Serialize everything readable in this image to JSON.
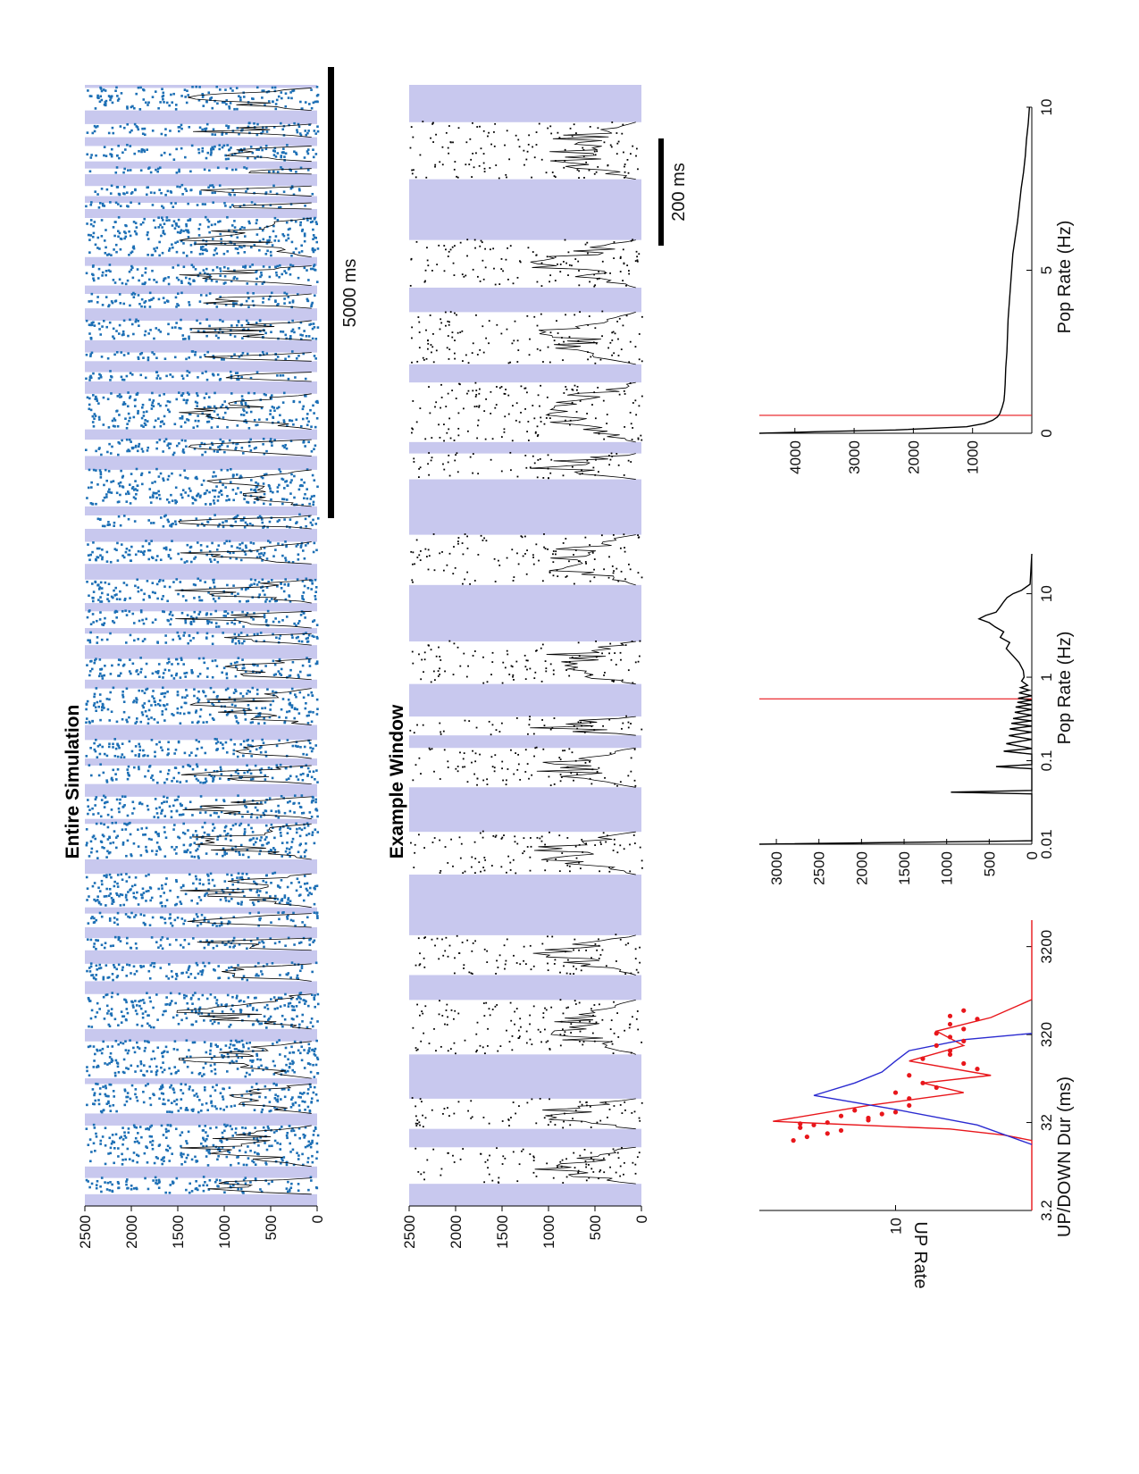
{
  "figure": {
    "orientation": "landscape page rotated 90 degrees counter-clockwise"
  },
  "colors": {
    "up_state_shade": "#c8c8ee",
    "raster_full": "#1c6fb5",
    "raster_window": "#000000",
    "red": "#e8161b",
    "blue": "#2a2ad0",
    "trace": "#000000"
  },
  "chart_data": [
    {
      "id": "entire",
      "type": "scatter",
      "title": "Entire Simulation",
      "xlabel": "",
      "ylabel": "",
      "ylim": [
        0,
        2500
      ],
      "yticks": [
        "0",
        "500",
        "1000",
        "1500",
        "2000",
        "2500"
      ],
      "scalebar": "5000 ms",
      "description_series": [
        "raster spikes",
        "population rate trace",
        "UP-state shading"
      ]
    },
    {
      "id": "window",
      "type": "scatter",
      "title": "Example Window",
      "xlabel": "",
      "ylabel": "",
      "ylim": [
        0,
        2500
      ],
      "yticks": [
        "0",
        "500",
        "1000",
        "1500",
        "2000",
        "2500"
      ],
      "scalebar": "200 ms"
    },
    {
      "id": "updur",
      "type": "line",
      "title": "",
      "xlabel": "UP/DOWN Dur (ms)",
      "ylabel": "UP Rate",
      "xscale": "log",
      "xlim": [
        3.2,
        6400
      ],
      "xticks": [
        "3.2",
        "32",
        "320",
        "3200"
      ],
      "yticks": [
        "10"
      ],
      "ylim": [
        0,
        20
      ],
      "series": [
        {
          "color": "red",
          "x": [
            3.2,
            20,
            23,
            27,
            33,
            50,
            70,
            90,
            110,
            160,
            240,
            350,
            500,
            800,
            6400
          ],
          "y": [
            0,
            0,
            2,
            6,
            19,
            12,
            5,
            8,
            3,
            9,
            5,
            7,
            3,
            0,
            0
          ]
        },
        {
          "color": "blue",
          "x": [
            18,
            30,
            45,
            65,
            90,
            120,
            160,
            210,
            280,
            330
          ],
          "y": [
            0,
            4,
            10,
            16,
            13,
            11,
            10,
            9,
            5,
            0
          ]
        }
      ],
      "points": [
        [
          20,
          17.5
        ],
        [
          22,
          16.5
        ],
        [
          24,
          15
        ],
        [
          26,
          14
        ],
        [
          28,
          17
        ],
        [
          30,
          16
        ],
        [
          31,
          17
        ],
        [
          32,
          15
        ],
        [
          34,
          12
        ],
        [
          36,
          12
        ],
        [
          38,
          14
        ],
        [
          40,
          11
        ],
        [
          42,
          10
        ],
        [
          44,
          13
        ],
        [
          50,
          9
        ],
        [
          60,
          9
        ],
        [
          70,
          10
        ],
        [
          80,
          7
        ],
        [
          90,
          8
        ],
        [
          110,
          9
        ],
        [
          130,
          4
        ],
        [
          150,
          5
        ],
        [
          170,
          8
        ],
        [
          190,
          6
        ],
        [
          210,
          6
        ],
        [
          240,
          7
        ],
        [
          270,
          5
        ],
        [
          300,
          6
        ],
        [
          330,
          7
        ],
        [
          370,
          5
        ],
        [
          420,
          6
        ],
        [
          480,
          4
        ],
        [
          520,
          6
        ],
        [
          600,
          5
        ]
      ]
    },
    {
      "id": "pophist_log",
      "type": "line",
      "title": "",
      "xlabel": "Pop Rate (Hz)",
      "ylabel": "",
      "xscale": "log",
      "xlim": [
        0.01,
        30
      ],
      "xticks": [
        "0.01",
        "0.1",
        "1",
        "10"
      ],
      "ylim": [
        0,
        3200
      ],
      "yticks": [
        "0",
        "500",
        "1000",
        "1500",
        "2000",
        "2500",
        "3000"
      ],
      "threshold": 0.55,
      "series": [
        {
          "name": "",
          "x": [
            0.01,
            0.011,
            0.012,
            0.04,
            0.042,
            0.044,
            0.08,
            0.085,
            0.09,
            0.12,
            0.13,
            0.14,
            0.16,
            0.18,
            0.2,
            0.22,
            0.24,
            0.26,
            0.28,
            0.3,
            0.32,
            0.35,
            0.38,
            0.41,
            0.44,
            0.47,
            0.5,
            0.53,
            0.56,
            0.6,
            0.65,
            0.7,
            0.75,
            0.8,
            0.9,
            1.0,
            1.2,
            1.5,
            1.8,
            2.2,
            2.6,
            3.0,
            3.5,
            4.0,
            4.5,
            5.0,
            5.5,
            6.0,
            7.0,
            8.0,
            9.0,
            10.0,
            11.0,
            13.0,
            30.0
          ],
          "y": [
            3200,
            0,
            0,
            0,
            950,
            0,
            0,
            420,
            0,
            0,
            330,
            0,
            300,
            0,
            270,
            0,
            260,
            0,
            240,
            0,
            220,
            0,
            200,
            0,
            190,
            0,
            170,
            0,
            160,
            0,
            150,
            30,
            130,
            50,
            120,
            90,
            100,
            150,
            220,
            300,
            260,
            370,
            330,
            430,
            500,
            620,
            540,
            420,
            370,
            330,
            290,
            220,
            120,
            20,
            0
          ]
        }
      ]
    },
    {
      "id": "pophist_lin",
      "type": "line",
      "title": "",
      "xlabel": "Pop Rate (Hz)",
      "ylabel": "",
      "xlim": [
        0,
        10
      ],
      "xticks": [
        "0",
        "5",
        "10"
      ],
      "ylim": [
        0,
        4600
      ],
      "yticks": [
        "1000",
        "2000",
        "3000",
        "4000"
      ],
      "threshold": 0.55,
      "series": [
        {
          "name": "",
          "x": [
            0,
            0.05,
            0.1,
            0.2,
            0.3,
            0.4,
            0.5,
            0.6,
            0.8,
            1.0,
            1.2,
            1.5,
            2.0,
            2.5,
            3.0,
            3.5,
            4.0,
            4.5,
            5.0,
            5.5,
            6.0,
            6.5,
            7.0,
            7.5,
            8.0,
            8.5,
            9.0,
            9.5,
            10.0
          ],
          "y": [
            4600,
            3600,
            2300,
            1100,
            800,
            660,
            580,
            540,
            500,
            470,
            460,
            450,
            440,
            420,
            410,
            400,
            380,
            360,
            340,
            320,
            280,
            240,
            210,
            180,
            140,
            110,
            90,
            60,
            40
          ]
        }
      ]
    }
  ]
}
